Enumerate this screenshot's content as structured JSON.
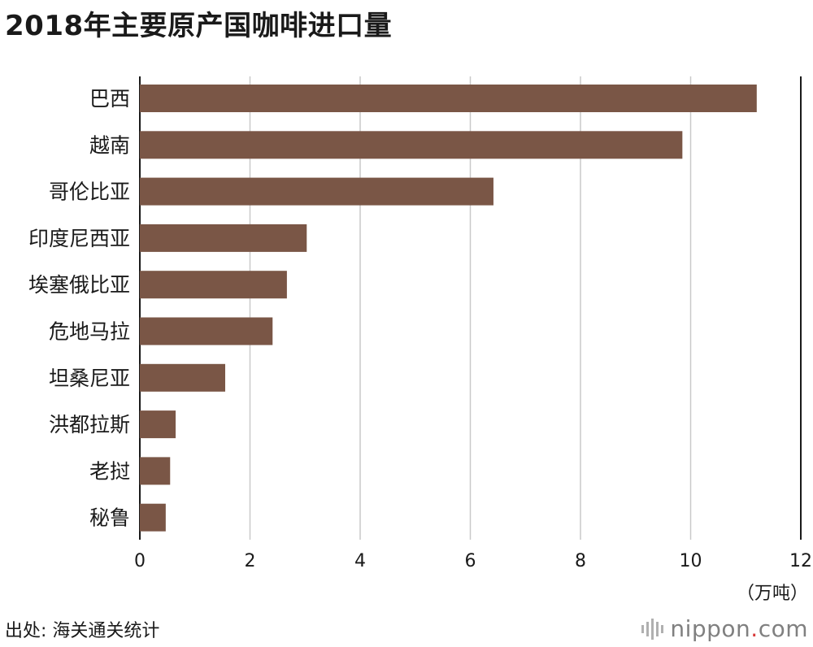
{
  "chart_data": {
    "type": "bar",
    "orientation": "horizontal",
    "title": "2018年主要原产国咖啡进口量",
    "categories": [
      "巴西",
      "越南",
      "哥伦比亚",
      "印度尼西亚",
      "埃塞俄比亚",
      "危地马拉",
      "坦桑尼亚",
      "洪都拉斯",
      "老挝",
      "秘鲁"
    ],
    "values": [
      11.2,
      9.85,
      6.42,
      3.03,
      2.67,
      2.41,
      1.55,
      0.65,
      0.55,
      0.47
    ],
    "xlim": [
      0,
      12
    ],
    "xticks": [
      "0",
      "2",
      "4",
      "6",
      "8",
      "10",
      "12"
    ],
    "unit": "（万吨）",
    "grid": true,
    "bar_color": "#7a5646"
  },
  "footer": {
    "source": "出处: 海关通关统计",
    "logo_main": "nippon",
    "logo_dot": ".",
    "logo_tail": "com"
  }
}
